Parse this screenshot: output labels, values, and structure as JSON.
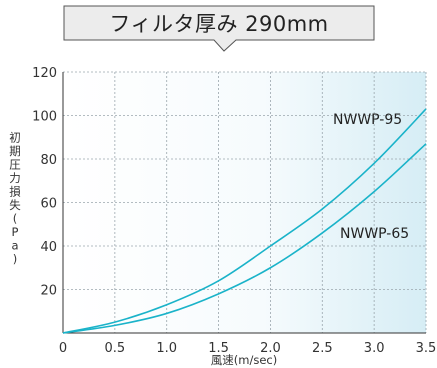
{
  "chart_data": {
    "type": "line",
    "title": "フィルタ厚み 290mm",
    "xlabel": "風速(m/sec)",
    "ylabel": "初期圧力損失(Pa)",
    "xlim": [
      0,
      3.5
    ],
    "ylim": [
      0,
      120
    ],
    "xticks": [
      "0",
      "0.5",
      "1.0",
      "1.5",
      "2.0",
      "2.5",
      "3.0",
      "3.5"
    ],
    "yticks": [
      "20",
      "40",
      "60",
      "80",
      "100",
      "120"
    ],
    "grid": true,
    "series": [
      {
        "name": "NWWP-95",
        "color": "#1ab3c9",
        "x": [
          0,
          0.5,
          1.0,
          1.5,
          2.0,
          2.5,
          3.0,
          3.5
        ],
        "y": [
          0,
          5,
          13,
          24,
          40,
          57,
          78,
          103
        ]
      },
      {
        "name": "NWWP-65",
        "color": "#1ab3c9",
        "x": [
          0,
          0.5,
          1.0,
          1.5,
          2.0,
          2.5,
          3.0,
          3.5
        ],
        "y": [
          0,
          3.5,
          9,
          18,
          30,
          46,
          65,
          87
        ]
      }
    ]
  }
}
